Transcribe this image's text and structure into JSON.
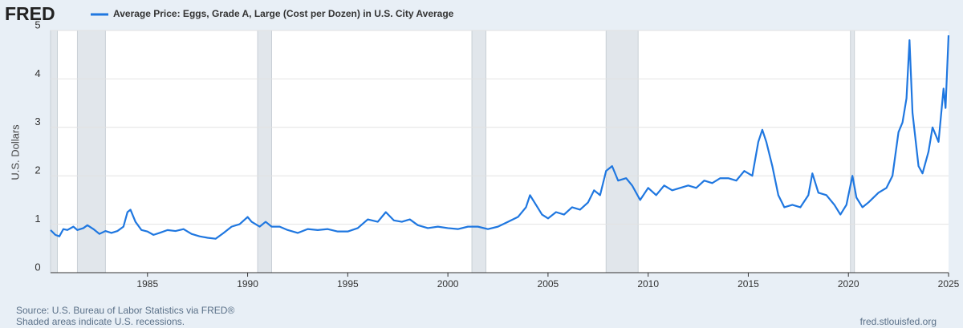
{
  "chart_data": {
    "type": "line",
    "logo": "FRED",
    "title": "Average Price: Eggs, Grade A, Large (Cost per Dozen) in U.S. City Average",
    "ylabel": "U.S. Dollars",
    "source": "Source: U.S. Bureau of Labor Statistics via FRED®",
    "note": "Shaded areas indicate U.S. recessions.",
    "url": "fred.stlouisfed.org",
    "grid": true,
    "xlim": [
      1980.16,
      2025.0
    ],
    "xticks": [
      1985,
      1990,
      1995,
      2000,
      2005,
      2010,
      2015,
      2020,
      2025
    ],
    "ylim": [
      0,
      5
    ],
    "yticks": [
      0,
      1,
      2,
      3,
      4,
      5
    ],
    "recessions": [
      [
        1980.0,
        1980.5
      ],
      [
        1981.5,
        1982.9
      ],
      [
        1990.5,
        1991.2
      ],
      [
        2001.2,
        2001.9
      ],
      [
        2007.9,
        2009.5
      ],
      [
        2020.1,
        2020.3
      ]
    ],
    "x": [
      1980.16,
      1980.4,
      1980.6,
      1980.8,
      1981.0,
      1981.3,
      1981.5,
      1981.8,
      1982.0,
      1982.3,
      1982.6,
      1982.9,
      1983.2,
      1983.5,
      1983.8,
      1984.0,
      1984.15,
      1984.4,
      1984.7,
      1985.0,
      1985.3,
      1985.6,
      1986.0,
      1986.4,
      1986.8,
      1987.2,
      1987.6,
      1988.0,
      1988.4,
      1988.8,
      1989.2,
      1989.6,
      1990.0,
      1990.2,
      1990.6,
      1990.9,
      1991.2,
      1991.6,
      1992.0,
      1992.5,
      1993.0,
      1993.5,
      1994.0,
      1994.5,
      1995.0,
      1995.5,
      1996.0,
      1996.5,
      1996.9,
      1997.3,
      1997.7,
      1998.1,
      1998.5,
      1999.0,
      1999.5,
      2000.0,
      2000.5,
      2001.0,
      2001.5,
      2002.0,
      2002.5,
      2003.0,
      2003.5,
      2003.9,
      2004.1,
      2004.4,
      2004.7,
      2005.0,
      2005.4,
      2005.8,
      2006.2,
      2006.6,
      2007.0,
      2007.3,
      2007.6,
      2007.9,
      2008.2,
      2008.5,
      2008.9,
      2009.2,
      2009.6,
      2010.0,
      2010.4,
      2010.8,
      2011.2,
      2011.6,
      2012.0,
      2012.4,
      2012.8,
      2013.2,
      2013.6,
      2014.0,
      2014.4,
      2014.8,
      2015.2,
      2015.5,
      2015.7,
      2015.9,
      2016.2,
      2016.5,
      2016.8,
      2017.2,
      2017.6,
      2018.0,
      2018.2,
      2018.5,
      2018.9,
      2019.3,
      2019.6,
      2019.9,
      2020.2,
      2020.4,
      2020.7,
      2021.0,
      2021.5,
      2021.9,
      2022.2,
      2022.5,
      2022.7,
      2022.9,
      2023.05,
      2023.2,
      2023.5,
      2023.7,
      2024.0,
      2024.2,
      2024.5,
      2024.75,
      2024.85,
      2025.0
    ],
    "series": [
      {
        "name": "Average Price: Eggs, Grade A, Large (Cost per Dozen) in U.S. City Average",
        "color": "#1f77e0",
        "values": [
          0.88,
          0.78,
          0.75,
          0.9,
          0.88,
          0.95,
          0.88,
          0.92,
          0.98,
          0.9,
          0.8,
          0.86,
          0.82,
          0.86,
          0.95,
          1.25,
          1.3,
          1.05,
          0.88,
          0.85,
          0.78,
          0.82,
          0.88,
          0.86,
          0.9,
          0.8,
          0.75,
          0.72,
          0.7,
          0.82,
          0.95,
          1.0,
          1.15,
          1.05,
          0.95,
          1.05,
          0.95,
          0.95,
          0.88,
          0.82,
          0.9,
          0.88,
          0.9,
          0.85,
          0.85,
          0.92,
          1.1,
          1.05,
          1.25,
          1.08,
          1.05,
          1.1,
          0.98,
          0.92,
          0.95,
          0.92,
          0.9,
          0.95,
          0.95,
          0.9,
          0.95,
          1.05,
          1.15,
          1.35,
          1.6,
          1.4,
          1.2,
          1.12,
          1.25,
          1.2,
          1.35,
          1.3,
          1.45,
          1.7,
          1.6,
          2.1,
          2.2,
          1.9,
          1.95,
          1.8,
          1.5,
          1.75,
          1.6,
          1.8,
          1.7,
          1.75,
          1.8,
          1.75,
          1.9,
          1.85,
          1.95,
          1.95,
          1.9,
          2.1,
          2.0,
          2.7,
          2.95,
          2.7,
          2.2,
          1.6,
          1.35,
          1.4,
          1.35,
          1.6,
          2.05,
          1.65,
          1.6,
          1.4,
          1.2,
          1.4,
          2.0,
          1.55,
          1.35,
          1.45,
          1.65,
          1.75,
          2.0,
          2.9,
          3.1,
          3.6,
          4.8,
          3.3,
          2.2,
          2.05,
          2.5,
          3.0,
          2.7,
          3.8,
          3.4,
          4.9
        ]
      }
    ]
  }
}
